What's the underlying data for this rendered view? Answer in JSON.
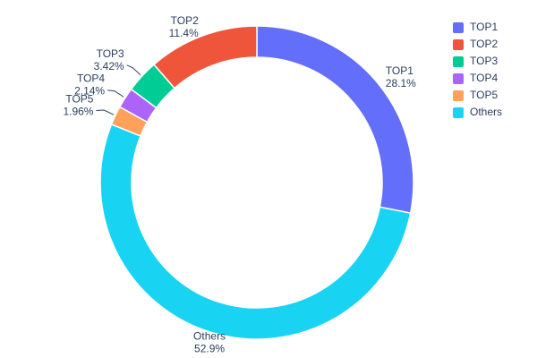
{
  "chart_data": {
    "type": "pie",
    "subtype": "donut",
    "hole": 0.8,
    "title": "",
    "categories": [
      "TOP1",
      "TOP2",
      "TOP3",
      "TOP4",
      "TOP5",
      "Others"
    ],
    "values": [
      28.1,
      11.4,
      3.42,
      2.14,
      1.96,
      52.9
    ],
    "labels_pct": [
      "28.1%",
      "11.4%",
      "3.42%",
      "2.14%",
      "1.96%",
      "52.9%"
    ],
    "colors": [
      "#636efa",
      "#ef553b",
      "#00cc96",
      "#ab63fa",
      "#ffa15a",
      "#19d3f3"
    ],
    "clockwise_order_from_top": [
      "TOP1",
      "Others",
      "TOP5",
      "TOP4",
      "TOP3",
      "TOP2"
    ],
    "legend": {
      "position": "top-right",
      "entries": [
        "TOP1",
        "TOP2",
        "TOP3",
        "TOP4",
        "TOP5",
        "Others"
      ]
    },
    "text_color": "#2a3f5f",
    "background": "#ffffff",
    "grid": false
  }
}
